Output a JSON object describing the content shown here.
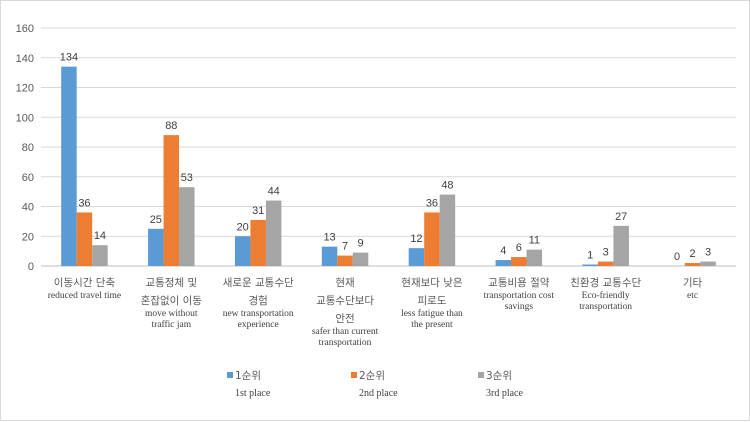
{
  "chart_data": {
    "type": "bar",
    "title": "",
    "xlabel": "",
    "ylabel": "",
    "ylim": [
      0,
      160
    ],
    "yticks": [
      0,
      20,
      40,
      60,
      80,
      100,
      120,
      140,
      160
    ],
    "grid": true,
    "legend_position": "bottom",
    "categories": [
      {
        "ko": [
          "이동시간 단축"
        ],
        "en": [
          "reduced travel time"
        ]
      },
      {
        "ko": [
          "교통정체 및",
          "혼잡없이 이동"
        ],
        "en": [
          "move  without",
          "traffic  jam"
        ]
      },
      {
        "ko": [
          "새로운 교통수단",
          "경험"
        ],
        "en": [
          "new transportation",
          "experience"
        ]
      },
      {
        "ko": [
          "현재",
          "교통수단보다",
          "안전"
        ],
        "en": [
          "safer than current",
          "transportation"
        ]
      },
      {
        "ko": [
          "현재보다 낮은",
          "피로도"
        ],
        "en": [
          "less fatigue  than",
          "the present"
        ]
      },
      {
        "ko": [
          "교통비용 절약"
        ],
        "en": [
          "transportation  cost",
          "savings"
        ]
      },
      {
        "ko": [
          "친환경 교통수단"
        ],
        "en": [
          "Eco-friendly",
          "transportation"
        ]
      },
      {
        "ko": [
          "기타"
        ],
        "en": [
          "etc"
        ]
      }
    ],
    "series": [
      {
        "name_ko": "1순위",
        "name_en": "1st place",
        "color": "#5B9BD5",
        "values": [
          134,
          25,
          20,
          13,
          12,
          4,
          1,
          0
        ]
      },
      {
        "name_ko": "2순위",
        "name_en": "2nd place",
        "color": "#ED7D31",
        "values": [
          36,
          88,
          31,
          7,
          36,
          6,
          3,
          2
        ]
      },
      {
        "name_ko": "3순위",
        "name_en": "3rd place",
        "color": "#A5A5A5",
        "values": [
          14,
          53,
          44,
          9,
          48,
          11,
          27,
          3
        ]
      }
    ]
  }
}
